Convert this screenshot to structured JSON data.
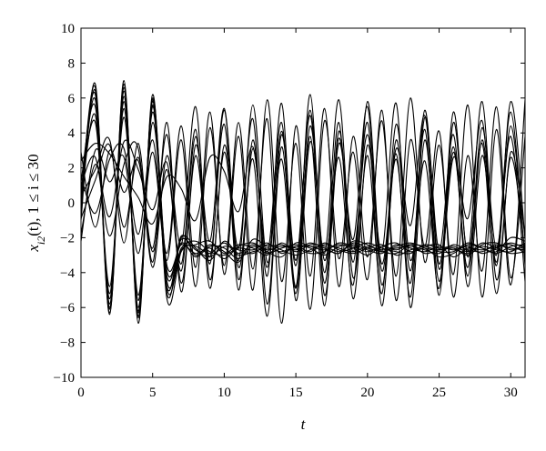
{
  "chart_data": {
    "type": "line",
    "title": "",
    "xlabel": "t",
    "ylabel": "x_{i2}(t), 1 ≤ i ≤ 30",
    "xlim": [
      0,
      31
    ],
    "ylim": [
      -10,
      10
    ],
    "xticks": [
      0,
      5,
      10,
      15,
      20,
      25,
      30
    ],
    "yticks": [
      10,
      8,
      6,
      4,
      2,
      0,
      -2,
      -4,
      -6,
      -8,
      -10
    ],
    "grid": false,
    "legend": "none",
    "line_color": "#000000",
    "x": [
      0,
      1,
      2,
      3,
      4,
      5,
      6,
      7,
      8,
      9,
      10,
      11,
      12,
      13,
      14,
      15,
      16,
      17,
      18,
      19,
      20,
      21,
      22,
      23,
      24,
      25,
      26,
      27,
      28,
      29,
      30,
      31
    ],
    "series": [
      {
        "values": [
          0.3,
          6.6,
          -5.8,
          6.8,
          -6.5,
          5.5,
          -4.8,
          -1.9,
          -3.0,
          -2.4,
          -2.8,
          -3.4,
          -2.1,
          -2.5,
          -2.4,
          -2.7,
          -2.3,
          -2.6,
          -2.9,
          -2.2,
          -2.4,
          -2.8,
          -2.5,
          -2.3,
          -2.6,
          -3.1,
          -2.9,
          -2.4,
          -2.6,
          -2.8,
          -2.0,
          -2.2
        ]
      },
      {
        "values": [
          0.5,
          6.2,
          -6.0,
          6.4,
          -6.2,
          5.8,
          -5.2,
          -2.0,
          -2.6,
          -3.3,
          -2.2,
          -2.9,
          -2.4,
          -2.8,
          -3.1,
          -2.3,
          -2.5,
          -2.7,
          -2.4,
          -2.6,
          -3.0,
          -2.5,
          -2.7,
          -2.4,
          -2.9,
          -2.7,
          -2.6,
          -3.0,
          -2.4,
          -2.3,
          -2.7,
          -2.5
        ]
      },
      {
        "values": [
          -0.2,
          5.9,
          -6.3,
          6.1,
          -6.6,
          6.0,
          -4.5,
          -2.6,
          -2.2,
          -2.8,
          -3.0,
          -2.6,
          -2.7,
          -2.3,
          -2.9,
          -2.5,
          -2.8,
          -2.3,
          -2.7,
          -2.9,
          -2.6,
          -2.4,
          -3.0,
          -2.7,
          -2.5,
          -2.4,
          -3.1,
          -2.6,
          -2.7,
          -2.5,
          -2.4,
          -2.9
        ]
      },
      {
        "values": [
          1.2,
          5.5,
          -5.5,
          5.8,
          -6.0,
          5.6,
          -3.9,
          -2.3,
          -3.1,
          -2.5,
          -2.6,
          -3.2,
          -2.5,
          -2.9,
          -2.6,
          -2.4,
          -2.6,
          -3.0,
          -2.5,
          -2.4,
          -2.7,
          -2.9,
          -2.4,
          -2.6,
          -2.8,
          -2.5,
          -2.7,
          -2.5,
          -2.9,
          -2.6,
          -2.3,
          -2.6
        ]
      },
      {
        "values": [
          -1.0,
          6.8,
          -6.4,
          7.0,
          -6.9,
          6.2,
          -5.5,
          -2.8,
          -2.4,
          -2.2,
          -2.9,
          -2.4,
          -2.6,
          -3.0,
          -2.3,
          -2.8,
          -2.4,
          -2.5,
          -2.8,
          -2.6,
          -2.3,
          -2.6,
          -2.8,
          -2.9,
          -2.4,
          -2.6,
          -2.5,
          -2.8,
          -2.5,
          -2.7,
          -2.8,
          -2.3
        ]
      },
      {
        "values": [
          0.0,
          5.0,
          -5.2,
          5.4,
          -5.6,
          5.2,
          -4.2,
          -2.1,
          -2.7,
          -3.1,
          -2.5,
          -2.7,
          -2.9,
          -2.4,
          -2.7,
          -3.0,
          -2.7,
          -2.4,
          -2.6,
          -2.8,
          -2.5,
          -2.7,
          -2.6,
          -2.5,
          -2.7,
          -2.9,
          -2.4,
          -2.7,
          -2.8,
          -2.4,
          -2.6,
          -2.7
        ]
      },
      {
        "values": [
          0.8,
          4.6,
          -4.8,
          4.9,
          -5.3,
          4.6,
          -3.6,
          -2.4,
          -2.9,
          -2.6,
          -3.2,
          -2.5,
          -2.3,
          -2.7,
          -2.5,
          -2.6,
          -2.9,
          -2.8,
          -2.3,
          -2.5,
          -2.8,
          -2.5,
          -2.3,
          -2.8,
          -2.6,
          -2.8,
          -2.8,
          -2.3,
          -2.6,
          -2.9,
          -2.5,
          -2.4
        ]
      },
      {
        "values": [
          -0.6,
          6.4,
          -6.1,
          6.6,
          -6.3,
          5.9,
          -4.9,
          -2.7,
          -2.5,
          -2.9,
          -2.3,
          -3.0,
          -2.8,
          -2.6,
          -2.8,
          -2.5,
          -2.5,
          -2.6,
          -2.9,
          -2.3,
          -2.6,
          -2.8,
          -2.9,
          -2.4,
          -2.5,
          -2.7,
          -2.6,
          -2.9,
          -2.3,
          -2.6,
          -2.9,
          -2.8
        ]
      },
      {
        "values": [
          2.4,
          3.4,
          2.8,
          1.5,
          0.3,
          -1.2,
          1.5,
          0.8,
          -1.0,
          2.6,
          1.8,
          -0.5,
          3.2,
          -2.9,
          4.6,
          -4.8,
          6.2,
          -5.3,
          3.4,
          -2.1,
          5.5,
          -4.7,
          3.1,
          -1.3,
          5.0,
          -3.8,
          2.6,
          -0.9,
          4.7,
          -3.6,
          5.8,
          -2.1
        ]
      },
      {
        "values": [
          1.5,
          -0.6,
          2.5,
          3.1,
          -1.8,
          3.6,
          -2.9,
          4.4,
          -3.7,
          5.2,
          -4.1,
          3.8,
          -5.0,
          5.9,
          -4.5,
          3.4,
          -6.1,
          4.7,
          -3.2,
          2.9,
          -4.4,
          5.3,
          -5.6,
          3.6,
          -2.5,
          4.1,
          -5.4,
          2.7,
          -3.9,
          5.5,
          -4.3,
          3.8
        ]
      },
      {
        "values": [
          -1.8,
          2.2,
          -0.8,
          3.5,
          1.9,
          -0.4,
          2.3,
          -3.5,
          4.2,
          -4.9,
          3.3,
          -2.6,
          4.8,
          -5.8,
          3.9,
          -3.6,
          5.3,
          -4.0,
          4.6,
          -5.5,
          3.3,
          -2.8,
          5.7,
          -6.0,
          3.6,
          -4.5,
          2.9,
          -3.7,
          4.3,
          -2.6,
          3.8,
          -4.5
        ]
      },
      {
        "values": [
          2.9,
          -1.4,
          3.0,
          0.6,
          2.4,
          -2.6,
          3.9,
          -4.6,
          2.7,
          -3.1,
          4.5,
          -5.0,
          3.6,
          -4.2,
          5.7,
          -5.6,
          3.5,
          -2.9,
          5.9,
          -4.3,
          2.7,
          -5.2,
          4.5,
          -3.3,
          2.4,
          -4.9,
          5.2,
          -3.1,
          3.4,
          -5.2,
          2.9,
          -1.9
        ]
      },
      {
        "values": [
          0.4,
          1.9,
          3.6,
          -2.3,
          3.4,
          -3.4,
          4.6,
          -5.1,
          3.3,
          -2.2,
          5.4,
          -3.7,
          2.5,
          -6.5,
          3.2,
          -4.9,
          4.4,
          -3.3,
          2.6,
          -4.7,
          5.8,
          -3.9,
          2.8,
          -5.4,
          4.9,
          -2.7,
          3.9,
          -4.8,
          2.7,
          -3.0,
          5.2,
          -3.6
        ]
      },
      {
        "values": [
          -2.2,
          3.0,
          1.2,
          2.6,
          -2.9,
          2.9,
          -3.3,
          3.6,
          -4.8,
          4.3,
          -3.6,
          4.6,
          -3.8,
          4.8,
          -6.9,
          4.4,
          -4.2,
          5.4,
          -4.8,
          3.8,
          -3.1,
          4.7,
          -4.2,
          6.0,
          -3.4,
          3.3,
          -4.1,
          5.6,
          -5.4,
          4.2,
          -4.7,
          5.9
        ]
      },
      {
        "values": [
          1.0,
          2.6,
          -1.9,
          2.2,
          3.1,
          -3.7,
          2.7,
          -2.4,
          5.5,
          -4.4,
          2.9,
          -3.3,
          5.6,
          -3.4,
          2.5,
          -5.2,
          3.8,
          -5.9,
          4.1,
          -3.4,
          4.6,
          -5.9,
          3.6,
          -3.9,
          4.2,
          -5.3,
          4.6,
          -2.8,
          5.8,
          -4.4,
          2.6,
          -2.9
        ]
      },
      {
        "values": [
          -0.9,
          1.3,
          3.3,
          -1.4,
          2.6,
          -2.8,
          1.9,
          -3.9,
          3.8,
          -3.5,
          5.3,
          -4.4,
          3.1,
          -3.7,
          4.1,
          -3.3,
          5.0,
          -4.6,
          3.7,
          -2.8,
          3.9,
          -3.5,
          2.5,
          -4.6,
          5.3,
          -3.5,
          3.2,
          -4.2,
          3.6,
          -3.4,
          4.4,
          -3.2
        ]
      }
    ]
  }
}
